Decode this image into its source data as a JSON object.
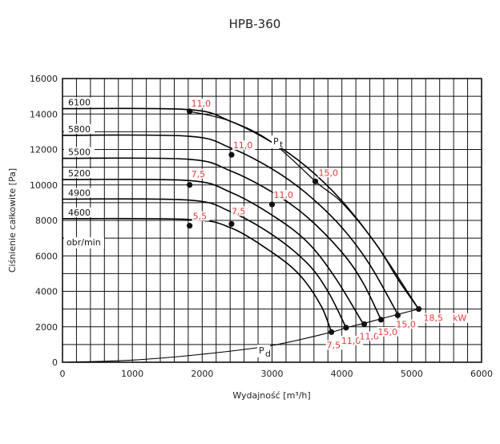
{
  "chart_data": {
    "type": "line",
    "title": "HPB-360",
    "xlabel": "Wydajność [m³/h]",
    "ylabel": "Ciśnienie całkowite [Pa]",
    "xlim": [
      0,
      6000
    ],
    "ylim": [
      0,
      16000
    ],
    "x_ticks": [
      0,
      1000,
      2000,
      3000,
      4000,
      5000,
      6000
    ],
    "y_ticks": [
      0,
      2000,
      4000,
      6000,
      8000,
      10000,
      12000,
      14000,
      16000
    ],
    "grid": true,
    "rpm_unit_label": "obr/min",
    "kw_unit_label": "kW",
    "pt_label": "P",
    "pt_sub": "t",
    "pd_label": "P",
    "pd_sub": "d",
    "series": [
      {
        "rpm": "6100",
        "p0": 14300,
        "points": [
          [
            0,
            14300
          ],
          [
            1800,
            14250
          ],
          [
            2400,
            13600
          ],
          [
            3000,
            12400
          ],
          [
            3500,
            11000
          ],
          [
            4000,
            9100
          ],
          [
            4500,
            6600
          ],
          [
            4800,
            4700
          ],
          [
            5100,
            3000
          ]
        ]
      },
      {
        "rpm": "5800",
        "p0": 12800,
        "points": [
          [
            0,
            12800
          ],
          [
            1800,
            12750
          ],
          [
            2400,
            12100
          ],
          [
            3000,
            10900
          ],
          [
            3500,
            9500
          ],
          [
            4000,
            7600
          ],
          [
            4400,
            5500
          ],
          [
            4800,
            2700
          ]
        ]
      },
      {
        "rpm": "5500",
        "p0": 11500,
        "points": [
          [
            0,
            11500
          ],
          [
            1800,
            11450
          ],
          [
            2400,
            10800
          ],
          [
            3000,
            9600
          ],
          [
            3500,
            8200
          ],
          [
            4000,
            6200
          ],
          [
            4300,
            4500
          ],
          [
            4560,
            2400
          ]
        ]
      },
      {
        "rpm": "5200",
        "p0": 10300,
        "points": [
          [
            0,
            10300
          ],
          [
            1800,
            10250
          ],
          [
            2400,
            9600
          ],
          [
            3000,
            8300
          ],
          [
            3500,
            6800
          ],
          [
            3900,
            4800
          ],
          [
            4300,
            2200
          ]
        ]
      },
      {
        "rpm": "4900",
        "p0": 9200,
        "points": [
          [
            0,
            9200
          ],
          [
            1800,
            9150
          ],
          [
            2400,
            8500
          ],
          [
            3000,
            7200
          ],
          [
            3500,
            5600
          ],
          [
            3800,
            4000
          ],
          [
            4060,
            1950
          ]
        ]
      },
      {
        "rpm": "4600",
        "p0": 8100,
        "points": [
          [
            0,
            8100
          ],
          [
            1800,
            8050
          ],
          [
            2400,
            7600
          ],
          [
            3000,
            6200
          ],
          [
            3400,
            4900
          ],
          [
            3700,
            3200
          ],
          [
            3850,
            1700
          ]
        ]
      }
    ],
    "pt_curve": [
      [
        1820,
        14150
      ],
      [
        2400,
        13600
      ],
      [
        3000,
        12400
      ],
      [
        3650,
        10100
      ],
      [
        4000,
        9000
      ],
      [
        4500,
        6600
      ],
      [
        5100,
        3000
      ]
    ],
    "pd_curve": [
      [
        0,
        0
      ],
      [
        1000,
        120
      ],
      [
        2000,
        450
      ],
      [
        3000,
        950
      ],
      [
        3850,
        1700
      ],
      [
        4060,
        1950
      ],
      [
        4320,
        2200
      ],
      [
        4560,
        2450
      ],
      [
        4800,
        2700
      ],
      [
        5100,
        3000
      ]
    ],
    "markers": [
      {
        "x": 1820,
        "y": 14150,
        "kw": "11,0"
      },
      {
        "x": 2420,
        "y": 11700,
        "kw": "11,0"
      },
      {
        "x": 3620,
        "y": 10200,
        "kw": "15,0"
      },
      {
        "x": 1820,
        "y": 10000,
        "kw": "7,5"
      },
      {
        "x": 3000,
        "y": 8900,
        "kw": "11,0"
      },
      {
        "x": 2420,
        "y": 7800,
        "kw": "7,5"
      },
      {
        "x": 1820,
        "y": 7700,
        "kw": "5,5"
      },
      {
        "x": 3850,
        "y": 1700,
        "kw": "7,5"
      },
      {
        "x": 4060,
        "y": 1950,
        "kw": "11,0"
      },
      {
        "x": 4320,
        "y": 2150,
        "kw": "11,0"
      },
      {
        "x": 4560,
        "y": 2400,
        "kw": "15,0"
      },
      {
        "x": 4800,
        "y": 2650,
        "kw": "15,0"
      },
      {
        "x": 5100,
        "y": 3000,
        "kw": "18,5"
      }
    ]
  }
}
